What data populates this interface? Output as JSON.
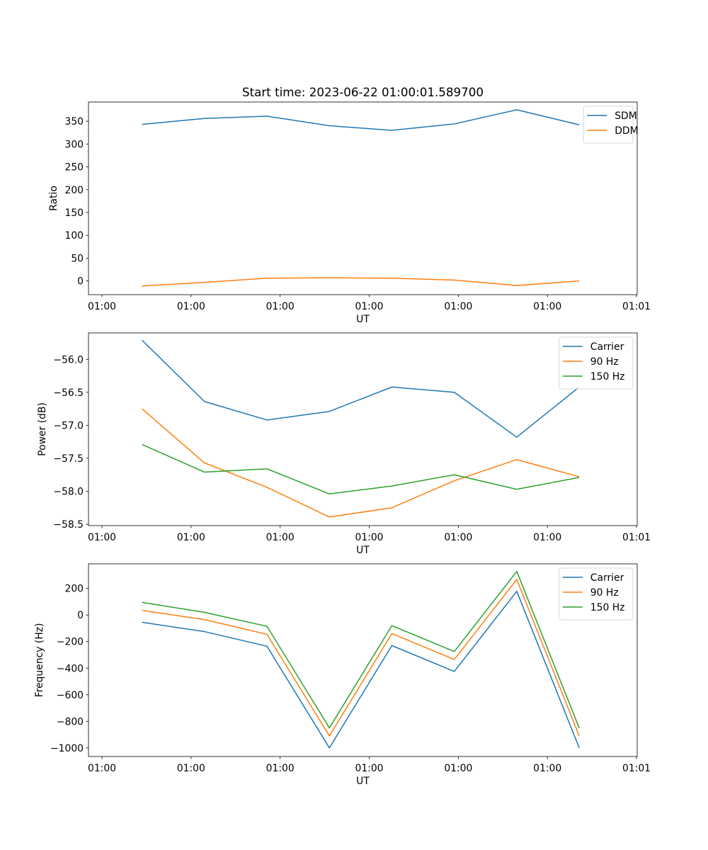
{
  "figure": {
    "title": "Start time: 2023-06-22 01:00:01.589700"
  },
  "chart_data": [
    {
      "type": "line",
      "xlabel": "UT",
      "ylabel": "Ratio",
      "x_tick_labels": [
        "01:00",
        "01:00",
        "01:00",
        "01:00",
        "01:00",
        "01:00",
        "01:01"
      ],
      "x": [
        0.5,
        1.2,
        1.9,
        2.6,
        3.3,
        4.0,
        4.7,
        5.4
      ],
      "xlim": [
        -0.1,
        6.05
      ],
      "ylim": [
        -30,
        392
      ],
      "yticks": [
        0,
        50,
        100,
        150,
        200,
        250,
        300,
        350
      ],
      "legend": "top-right",
      "series": [
        {
          "name": "SDM",
          "color": "#1f77b4",
          "values": [
            343,
            356,
            361,
            340,
            330,
            344,
            375,
            342
          ]
        },
        {
          "name": "DDM",
          "color": "#ff7f0e",
          "values": [
            -11,
            -3,
            6,
            7,
            6,
            2,
            -10,
            0
          ]
        }
      ]
    },
    {
      "type": "line",
      "xlabel": "UT",
      "ylabel": "Power (dB)",
      "x_tick_labels": [
        "01:00",
        "01:00",
        "01:00",
        "01:00",
        "01:00",
        "01:00",
        "01:01"
      ],
      "x": [
        0.5,
        1.2,
        1.9,
        2.6,
        3.3,
        4.0,
        4.7,
        5.4
      ],
      "xlim": [
        -0.1,
        6.05
      ],
      "ylim": [
        -58.52,
        -55.6
      ],
      "yticks": [
        -58.5,
        -58.0,
        -57.5,
        -57.0,
        -56.5,
        -56.0
      ],
      "ytick_labels": [
        "−58.5",
        "−58.0",
        "−57.5",
        "−57.0",
        "−56.5",
        "−56.0"
      ],
      "legend": "top-right",
      "series": [
        {
          "name": "Carrier",
          "color": "#1f77b4",
          "values": [
            -55.71,
            -56.64,
            -56.92,
            -56.79,
            -56.42,
            -56.5,
            -57.18,
            -56.42
          ]
        },
        {
          "name": "90 Hz",
          "color": "#ff7f0e",
          "values": [
            -56.75,
            -57.57,
            -57.94,
            -58.39,
            -58.25,
            -57.84,
            -57.52,
            -57.78
          ]
        },
        {
          "name": "150 Hz",
          "color": "#2ca02c",
          "values": [
            -57.29,
            -57.71,
            -57.66,
            -58.04,
            -57.92,
            -57.75,
            -57.97,
            -57.79
          ]
        }
      ]
    },
    {
      "type": "line",
      "xlabel": "UT",
      "ylabel": "Frequency (Hz)",
      "x_tick_labels": [
        "01:00",
        "01:00",
        "01:00",
        "01:00",
        "01:00",
        "01:00",
        "01:01"
      ],
      "x": [
        0.5,
        1.2,
        1.9,
        2.6,
        3.3,
        4.0,
        4.7,
        5.4
      ],
      "xlim": [
        -0.1,
        6.05
      ],
      "ylim": [
        -1065,
        385
      ],
      "yticks": [
        -1000,
        -800,
        -600,
        -400,
        -200,
        0,
        200
      ],
      "ytick_labels": [
        "−1000",
        "−800",
        "−600",
        "−400",
        "−200",
        "0",
        "200"
      ],
      "legend": "top-right",
      "series": [
        {
          "name": "Carrier",
          "color": "#1f77b4",
          "values": [
            -55,
            -125,
            -235,
            -1000,
            -230,
            -425,
            178,
            -1000
          ]
        },
        {
          "name": "90 Hz",
          "color": "#ff7f0e",
          "values": [
            35,
            -35,
            -145,
            -910,
            -140,
            -335,
            268,
            -910
          ]
        },
        {
          "name": "150 Hz",
          "color": "#2ca02c",
          "values": [
            95,
            20,
            -85,
            -850,
            -80,
            -275,
            328,
            -850
          ]
        }
      ]
    }
  ]
}
